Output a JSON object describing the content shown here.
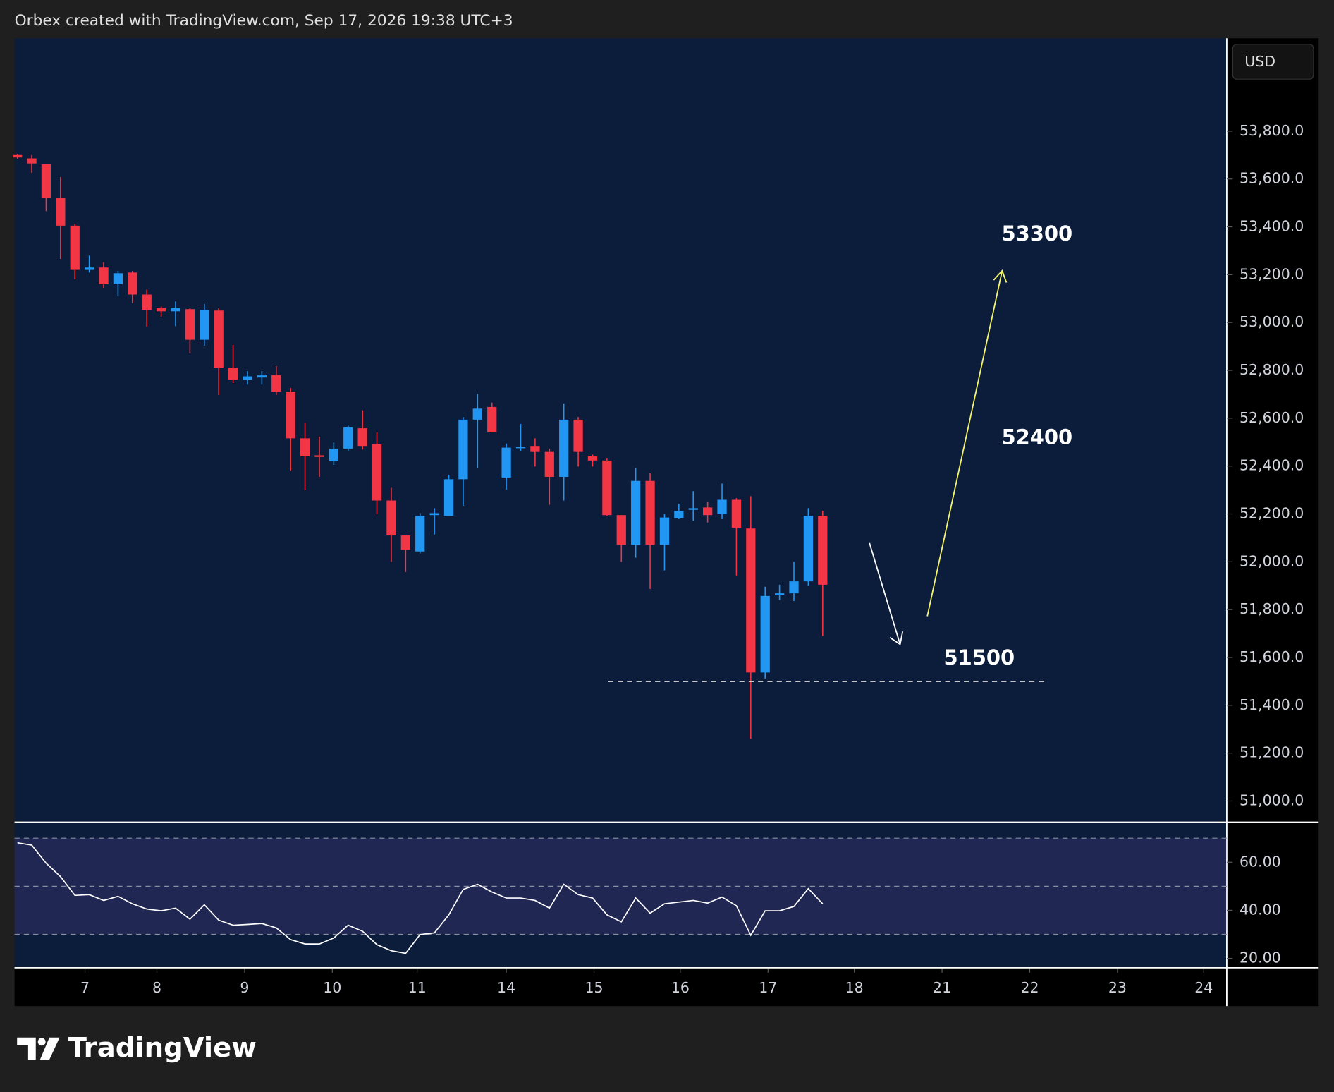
{
  "header": "Orbex created with TradingView.com, Sep 17, 2026 19:38 UTC+3",
  "currency": "USD",
  "footer_logo": "TradingView",
  "chart_data": [
    {
      "type": "candlestick",
      "up_color": "#2196f3",
      "down_color": "#f23645",
      "xlim": [
        -0.2,
        84.1
      ],
      "xticks": [
        {
          "value": 4.7,
          "label": "7"
        },
        {
          "value": 9.7,
          "label": "8"
        },
        {
          "value": 15.8,
          "label": "9"
        },
        {
          "value": 21.9,
          "label": "10"
        },
        {
          "value": 27.8,
          "label": "11"
        },
        {
          "value": 34.0,
          "label": "14"
        },
        {
          "value": 40.1,
          "label": "15"
        },
        {
          "value": 46.1,
          "label": "16"
        },
        {
          "value": 52.2,
          "label": "17"
        },
        {
          "value": 58.2,
          "label": "18"
        },
        {
          "value": 64.3,
          "label": "21"
        },
        {
          "value": 70.4,
          "label": "22"
        },
        {
          "value": 76.5,
          "label": "23"
        },
        {
          "value": 82.5,
          "label": "24"
        }
      ],
      "ylim": [
        50915,
        54188
      ],
      "yticks": [
        {
          "value": 51000,
          "label": "51,000.0"
        },
        {
          "value": 51200,
          "label": "51,200.0"
        },
        {
          "value": 51400,
          "label": "51,400.0"
        },
        {
          "value": 51600,
          "label": "51,600.0"
        },
        {
          "value": 51800,
          "label": "51,800.0"
        },
        {
          "value": 52000,
          "label": "52,000.0"
        },
        {
          "value": 52200,
          "label": "52,200.0"
        },
        {
          "value": 52400,
          "label": "52,400.0"
        },
        {
          "value": 52600,
          "label": "52,600.0"
        },
        {
          "value": 52800,
          "label": "52,800.0"
        },
        {
          "value": 53000,
          "label": "53,000.0"
        },
        {
          "value": 53200,
          "label": "53,200.0"
        },
        {
          "value": 53400,
          "label": "53,400.0"
        },
        {
          "value": 53600,
          "label": "53,600.0"
        },
        {
          "value": 53800,
          "label": "53,800.0"
        }
      ],
      "open": [
        53700,
        53686,
        53661,
        53522,
        53405,
        53220,
        53230,
        53160,
        53209,
        53117,
        53060,
        53047,
        53056,
        52928,
        53050,
        52811,
        52761,
        52770,
        52780,
        52711,
        52516,
        52445,
        52420,
        52473,
        52558,
        52491,
        52256,
        52110,
        52043,
        52195,
        52192,
        52345,
        52594,
        52647,
        52352,
        52477,
        52484,
        52459,
        52355,
        52594,
        52441,
        52423,
        52195,
        52071,
        52338,
        52071,
        52182,
        52217,
        52227,
        52199,
        52259,
        52139,
        51537,
        51860,
        51868,
        51918,
        52192
      ],
      "high": [
        53705,
        53700,
        53661,
        53608,
        53412,
        53280,
        53252,
        53216,
        53216,
        53138,
        53067,
        53088,
        53060,
        53078,
        53060,
        52907,
        52797,
        52797,
        52818,
        52726,
        52580,
        52523,
        52498,
        52569,
        52633,
        52541,
        52309,
        52110,
        52203,
        52224,
        52363,
        52605,
        52701,
        52665,
        52494,
        52576,
        52516,
        52473,
        52662,
        52605,
        52448,
        52434,
        52195,
        52391,
        52370,
        52199,
        52242,
        52295,
        52249,
        52327,
        52266,
        52274,
        51896,
        51904,
        52000,
        52224,
        52213
      ],
      "low": [
        53685,
        53626,
        53466,
        53266,
        53181,
        53209,
        53145,
        53110,
        53081,
        52982,
        53025,
        52985,
        52871,
        52903,
        52697,
        52747,
        52740,
        52740,
        52697,
        52381,
        52299,
        52355,
        52405,
        52462,
        52469,
        52199,
        52000,
        51957,
        52035,
        52114,
        52192,
        52234,
        52391,
        52541,
        52302,
        52462,
        52398,
        52238,
        52256,
        52398,
        52398,
        52192,
        52000,
        52017,
        51886,
        51964,
        52178,
        52171,
        52164,
        52178,
        51943,
        51260,
        51512,
        51840,
        51836,
        51900,
        51690
      ],
      "close": [
        53690,
        53665,
        53522,
        53405,
        53220,
        53230,
        53160,
        53206,
        53117,
        53053,
        53047,
        53060,
        52928,
        53053,
        52811,
        52761,
        52775,
        52779,
        52711,
        52516,
        52441,
        52438,
        52473,
        52562,
        52484,
        52256,
        52110,
        52050,
        52192,
        52203,
        52345,
        52594,
        52640,
        52541,
        52477,
        52480,
        52459,
        52355,
        52594,
        52459,
        52423,
        52195,
        52071,
        52338,
        52071,
        52185,
        52213,
        52224,
        52195,
        52259,
        52142,
        51537,
        51857,
        51868,
        51918,
        52192,
        51904
      ],
      "annotations": [
        53300,
        52400,
        51500
      ]
    },
    {
      "type": "line",
      "color": "#ffffff",
      "ylim": [
        16.1,
        76.3
      ],
      "yticks": [
        {
          "value": 20,
          "label": "20.00"
        },
        {
          "value": 40,
          "label": "40.00"
        },
        {
          "value": 60,
          "label": "60.00"
        }
      ],
      "levels": [
        70,
        50,
        30
      ],
      "values": [
        68.1,
        67.1,
        59.6,
        54.0,
        46.2,
        46.5,
        44.1,
        45.8,
        42.7,
        40.5,
        39.8,
        40.9,
        36.3,
        42.3,
        35.9,
        33.8,
        34.1,
        34.5,
        32.7,
        27.8,
        26.0,
        26.0,
        28.5,
        33.8,
        31.3,
        25.7,
        23.2,
        22.1,
        29.9,
        30.6,
        38.1,
        48.7,
        50.8,
        47.6,
        45.1,
        45.1,
        44.1,
        40.9,
        50.8,
        46.5,
        45.1,
        38.1,
        35.2,
        45.1,
        38.8,
        42.7,
        43.4,
        44.1,
        43.0,
        45.5,
        41.9,
        29.6,
        39.8,
        39.8,
        41.6,
        49.0,
        42.7
      ]
    }
  ]
}
